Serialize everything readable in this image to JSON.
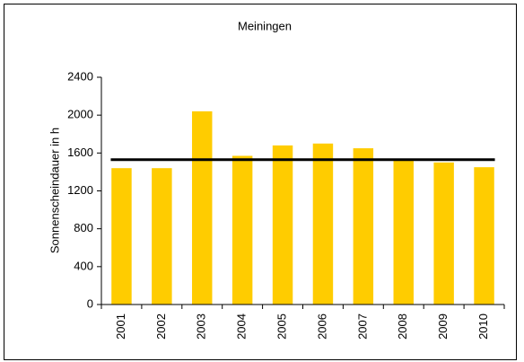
{
  "chart_data": {
    "type": "bar",
    "title": "Meiningen",
    "y_label": "Sonnenscheindauer in h",
    "categories": [
      "2001",
      "2002",
      "2003",
      "2004",
      "2005",
      "2006",
      "2007",
      "2008",
      "2009",
      "2010"
    ],
    "values": [
      1440,
      1440,
      2040,
      1570,
      1680,
      1700,
      1650,
      1530,
      1500,
      1450
    ],
    "color": "#ffcc00",
    "reference_line": 1530,
    "reference_color": "#000000",
    "ylim": [
      0,
      2400
    ],
    "yticks": [
      0,
      400,
      800,
      1200,
      1600,
      2000,
      2400
    ],
    "grid": false
  }
}
